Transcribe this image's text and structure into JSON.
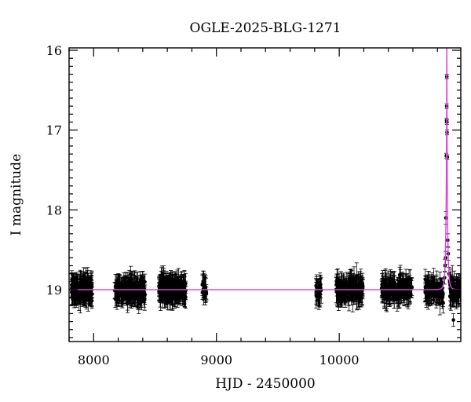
{
  "chart_data": {
    "type": "scatter",
    "title": "OGLE-2025-BLG-1271",
    "xlabel": "HJD - 2450000",
    "ylabel": "I magnitude",
    "xlim": [
      7800,
      10990
    ],
    "ylim": [
      19.65,
      15.97
    ],
    "y_inverted": true,
    "grid": false,
    "x_ticks": [
      "8000",
      "9000",
      "10000"
    ],
    "y_ticks": [
      "16",
      "17",
      "18",
      "19"
    ],
    "baseline_mag": 19.0,
    "series": [
      {
        "kind": "photometry",
        "color": "#000000",
        "error_bars": true,
        "seasons": [
          {
            "x_range": [
              7820,
              7990
            ],
            "n": 160
          },
          {
            "x_range": [
              8170,
              8420
            ],
            "n": 190
          },
          {
            "x_range": [
              8530,
              8750
            ],
            "n": 190
          },
          {
            "x_range": [
              8885,
              8920
            ],
            "n": 18
          },
          {
            "x_range": [
              9810,
              9855
            ],
            "n": 30
          },
          {
            "x_range": [
              9975,
              10195
            ],
            "n": 150
          },
          {
            "x_range": [
              10345,
              10595
            ],
            "n": 150
          },
          {
            "x_range": [
              10700,
              10990
            ],
            "n": 170
          }
        ],
        "typical_scatter": 0.12,
        "typical_error": 0.12,
        "event_points": [
          {
            "x": 10858,
            "y": 18.85
          },
          {
            "x": 10862,
            "y": 18.7
          },
          {
            "x": 10866,
            "y": 18.6
          },
          {
            "x": 10868,
            "y": 18.1
          },
          {
            "x": 10872,
            "y": 17.32
          },
          {
            "x": 10874,
            "y": 16.88
          },
          {
            "x": 10875,
            "y": 16.7
          },
          {
            "x": 10876,
            "y": 16.33
          },
          {
            "x": 10877,
            "y": 16.9
          },
          {
            "x": 10878,
            "y": 17.03
          },
          {
            "x": 10880,
            "y": 17.34
          },
          {
            "x": 10884,
            "y": 18.38
          },
          {
            "x": 10888,
            "y": 18.55
          },
          {
            "x": 10895,
            "y": 18.8
          },
          {
            "x": 10900,
            "y": 18.9
          },
          {
            "x": 10912,
            "y": 19.1
          },
          {
            "x": 10930,
            "y": 19.38
          }
        ]
      },
      {
        "kind": "model",
        "color": "#dd44dd",
        "t0": 10876,
        "u0": 0.052,
        "tE": 14,
        "baseline": 19.0
      }
    ]
  }
}
